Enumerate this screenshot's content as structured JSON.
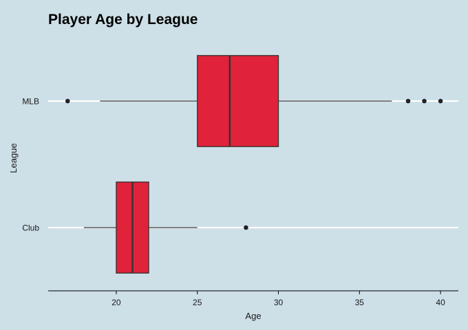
{
  "chart_data": {
    "type": "boxplot",
    "orientation": "horizontal",
    "title": "Player Age by League",
    "xlabel": "Age",
    "ylabel": "League",
    "xlim": [
      15.8,
      41.1
    ],
    "x_ticks": [
      20,
      25,
      30,
      35,
      40
    ],
    "categories": [
      "MLB",
      "Club"
    ],
    "boxes": [
      {
        "category": "MLB",
        "whisker_low": 19,
        "q1": 25,
        "median": 27,
        "q3": 30,
        "whisker_high": 37,
        "outliers": [
          17,
          38,
          39,
          40
        ]
      },
      {
        "category": "Club",
        "whisker_low": 18,
        "q1": 20,
        "median": 21,
        "q3": 22,
        "whisker_high": 25,
        "outliers": [
          28
        ]
      }
    ],
    "grid": {
      "major_y": true,
      "major_x": false
    },
    "legend": "none",
    "colors": {
      "background": "#cddfe7",
      "box_fill": "#e0223a",
      "box_line": "#333333",
      "grid": "#ffffff",
      "outlier": "#222222",
      "axis": "#000000"
    }
  }
}
